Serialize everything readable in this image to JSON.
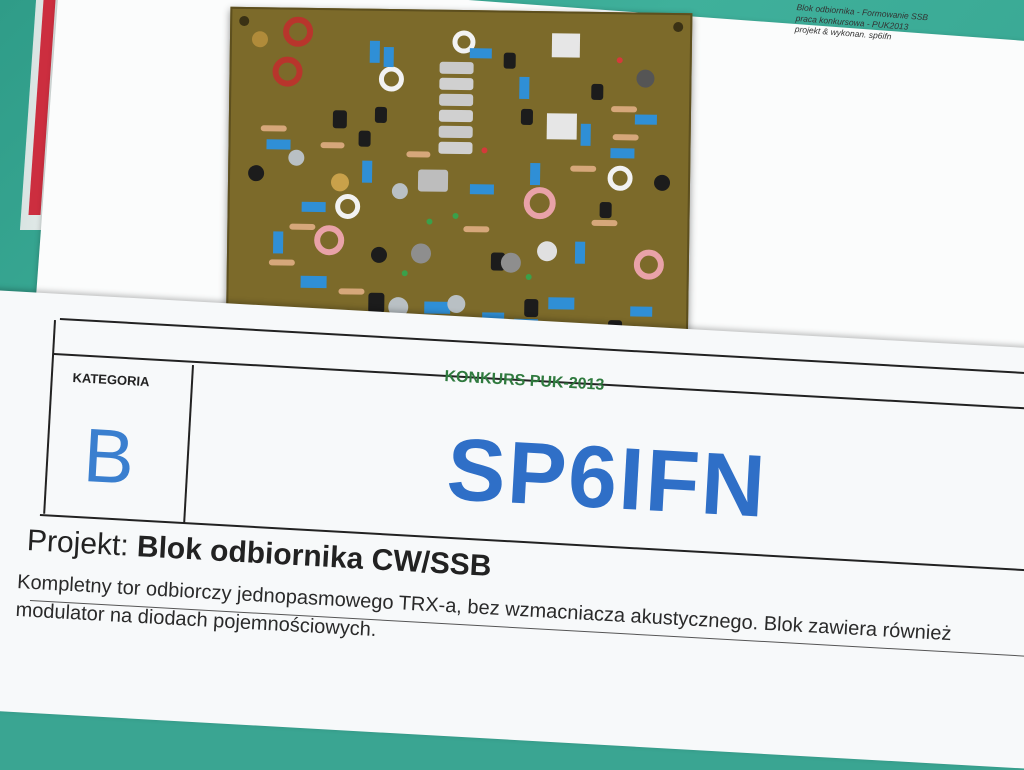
{
  "back_sheet": {
    "lines": [
      "Blok odbiornika - Formowanie SSB",
      "praca konkursowa - PUK2013",
      "projekt & wykonan.  sp6ifn"
    ]
  },
  "label": {
    "category_heading": "KATEGORIA",
    "category_value": "B",
    "contest": "KONKURS PUK-2013",
    "callsign": "SP6IFN",
    "project_prefix": "Projekt:",
    "project_title": "Blok odbiornika CW/SSB",
    "description": "Kompletny tor odbiorczy jednopasmowego TRX-a, bez wzmacniacza akustycznego. Blok zawiera również modulator na diodach pojemnościowych."
  },
  "colors": {
    "table_cloth": "#3aa592",
    "pcb": "#7c6a2a",
    "callsign_blue": "#2f6fc7",
    "contest_green": "#2f7a3e",
    "component_blue": "#2f8fd6"
  }
}
